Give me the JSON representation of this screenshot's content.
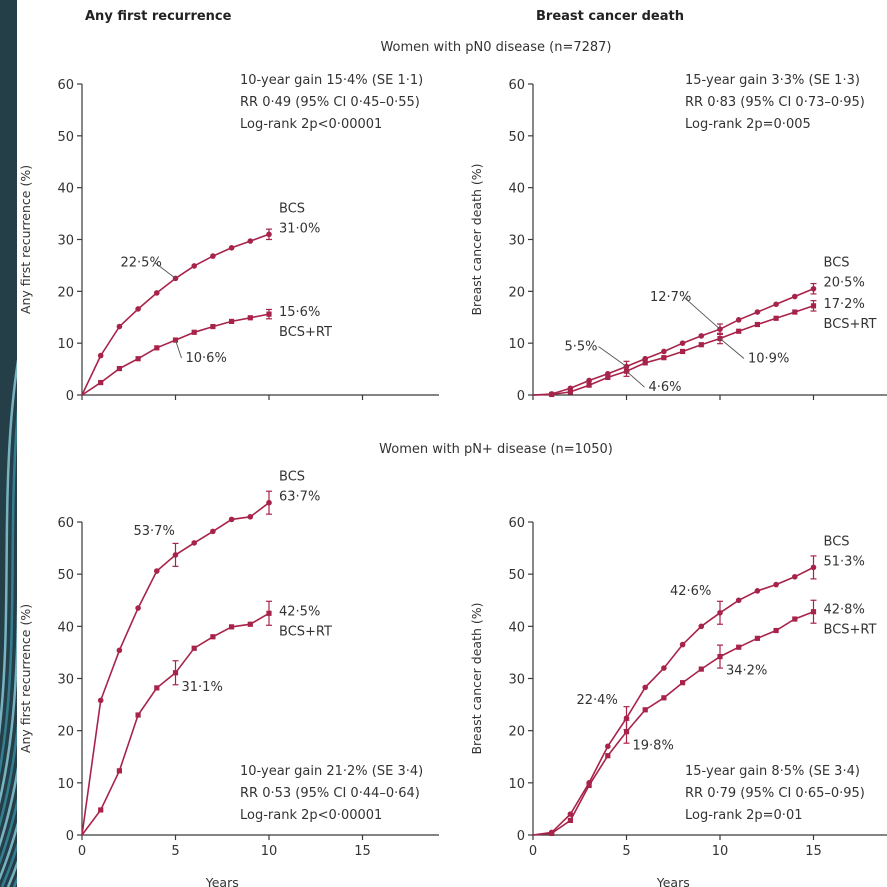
{
  "colors": {
    "series": "#a8234a",
    "backdrop": "#243f48",
    "swirl": "#3a8fa5",
    "axis": "#3a3a3a",
    "text": "#333333"
  },
  "headers": {
    "left": "Any first recurrence",
    "right": "Breast cancer death"
  },
  "subtitles": {
    "top": "Women with pN0 disease (n=7287)",
    "bottom": "Women with pN+ disease (n=1050)"
  },
  "chart_data": [
    {
      "type": "line",
      "panel": "pN0 - any first recurrence",
      "ylabel": "Any first recurrence (%)",
      "xlabel": "",
      "xlim": [
        0,
        19
      ],
      "ylim": [
        0,
        60
      ],
      "xticks": [
        0,
        5,
        10,
        15
      ],
      "yticks": [
        0,
        10,
        20,
        30,
        40,
        50,
        60
      ],
      "stats": [
        "10-year gain 15·4% (SE 1·1)",
        "RR 0·49 (95% CI 0·45–0·55)",
        "Log-rank 2p<0·00001"
      ],
      "stats_anchor": "top",
      "series": [
        {
          "name": "BCS",
          "end_label": "31·0%",
          "x": [
            0,
            1,
            2,
            3,
            4,
            5,
            6,
            7,
            8,
            9,
            10
          ],
          "values": [
            0,
            7.6,
            13.2,
            16.6,
            19.7,
            22.5,
            24.9,
            26.8,
            28.4,
            29.7,
            31.0
          ],
          "err_at": [
            10
          ],
          "err": 1.0
        },
        {
          "name": "BCS+RT",
          "end_label": "15·6%",
          "x": [
            0,
            1,
            2,
            3,
            4,
            5,
            6,
            7,
            8,
            9,
            10
          ],
          "values": [
            0,
            2.4,
            5.1,
            7.0,
            9.1,
            10.6,
            12.1,
            13.2,
            14.2,
            14.9,
            15.6
          ],
          "err_at": [
            10
          ],
          "err": 0.9
        }
      ],
      "annotations": [
        {
          "text": "22·5%",
          "x": 5,
          "y": 22.5,
          "dx": -55,
          "dy": -12,
          "line": true
        },
        {
          "text": "10·6%",
          "x": 5,
          "y": 10.6,
          "dx": 10,
          "dy": 22,
          "line": true
        }
      ]
    },
    {
      "type": "line",
      "panel": "pN0 - breast cancer death",
      "ylabel": "Breast cancer death (%)",
      "xlabel": "",
      "xlim": [
        0,
        19
      ],
      "ylim": [
        0,
        60
      ],
      "xticks": [
        0,
        5,
        10,
        15
      ],
      "yticks": [
        0,
        10,
        20,
        30,
        40,
        50,
        60
      ],
      "stats": [
        "15-year gain 3·3% (SE 1·3)",
        "RR 0·83 (95% CI 0·73–0·95)",
        "Log-rank 2p=0·005"
      ],
      "stats_anchor": "top",
      "series": [
        {
          "name": "BCS",
          "end_label": "20·5%",
          "x": [
            0,
            1,
            2,
            3,
            4,
            5,
            6,
            7,
            8,
            9,
            10,
            11,
            12,
            13,
            14,
            15
          ],
          "values": [
            0,
            0.2,
            1.3,
            2.8,
            4.1,
            5.5,
            7.0,
            8.4,
            10.0,
            11.4,
            12.7,
            14.5,
            16.0,
            17.5,
            19.0,
            20.5
          ],
          "err_at": [
            5,
            10,
            15
          ],
          "err": 1.0
        },
        {
          "name": "BCS+RT",
          "end_label": "17·2%",
          "x": [
            0,
            1,
            2,
            3,
            4,
            5,
            6,
            7,
            8,
            9,
            10,
            11,
            12,
            13,
            14,
            15
          ],
          "values": [
            0,
            0.1,
            0.6,
            1.9,
            3.4,
            4.6,
            6.2,
            7.2,
            8.4,
            9.7,
            10.9,
            12.3,
            13.6,
            14.8,
            16.0,
            17.2
          ],
          "err_at": [
            5,
            10,
            15
          ],
          "err": 1.0
        }
      ],
      "annotations": [
        {
          "text": "12·7%",
          "x": 10,
          "y": 12.7,
          "dx": -70,
          "dy": -28,
          "line": true
        },
        {
          "text": "10·9%",
          "x": 10,
          "y": 10.9,
          "dx": 28,
          "dy": 24,
          "line": true
        },
        {
          "text": "5·5%",
          "x": 5,
          "y": 5.5,
          "dx": -62,
          "dy": -16,
          "line": true
        },
        {
          "text": "4·6%",
          "x": 5,
          "y": 4.6,
          "dx": 22,
          "dy": 20,
          "line": true
        }
      ]
    },
    {
      "type": "line",
      "panel": "pN+ - any first recurrence",
      "ylabel": "Any first recurrence (%)",
      "xlabel": "Years",
      "xlim": [
        0,
        19
      ],
      "ylim": [
        0,
        60
      ],
      "xticks": [
        0,
        5,
        10,
        15
      ],
      "yticks": [
        0,
        10,
        20,
        30,
        40,
        50,
        60
      ],
      "stats": [
        "10-year gain 21·2% (SE 3·4)",
        "RR 0·53 (95% CI 0·44–0·64)",
        "Log-rank 2p<0·00001"
      ],
      "stats_anchor": "bottom",
      "series": [
        {
          "name": "BCS",
          "end_label": "63·7%",
          "x": [
            0,
            1,
            2,
            3,
            4,
            5,
            6,
            7,
            8,
            9,
            10
          ],
          "values": [
            0,
            25.8,
            35.4,
            43.5,
            50.6,
            53.7,
            56.0,
            58.2,
            60.5,
            61.0,
            63.7
          ],
          "err_at": [
            5,
            10
          ],
          "err": 2.2
        },
        {
          "name": "BCS+RT",
          "end_label": "42·5%",
          "x": [
            0,
            1,
            2,
            3,
            4,
            5,
            6,
            7,
            8,
            9,
            10
          ],
          "values": [
            0,
            4.8,
            12.3,
            23.0,
            28.2,
            31.1,
            35.8,
            38.0,
            39.9,
            40.4,
            42.5
          ],
          "err_at": [
            5,
            10
          ],
          "err": 2.3
        }
      ],
      "annotations": [
        {
          "text": "53·7%",
          "x": 5,
          "y": 53.7,
          "dx": -42,
          "dy": -20,
          "line": false
        },
        {
          "text": "31·1%",
          "x": 5,
          "y": 31.1,
          "dx": 6,
          "dy": 18,
          "line": false
        }
      ]
    },
    {
      "type": "line",
      "panel": "pN+ - breast cancer death",
      "ylabel": "Breast cancer death (%)",
      "xlabel": "Years",
      "xlim": [
        0,
        19
      ],
      "ylim": [
        0,
        60
      ],
      "xticks": [
        0,
        5,
        10,
        15
      ],
      "yticks": [
        0,
        10,
        20,
        30,
        40,
        50,
        60
      ],
      "stats": [
        "15-year gain 8·5% (SE 3·4)",
        "RR 0·79 (95% CI 0·65–0·95)",
        "Log-rank 2p=0·01"
      ],
      "stats_anchor": "bottom",
      "series": [
        {
          "name": "BCS",
          "end_label": "51·3%",
          "x": [
            0,
            1,
            2,
            3,
            4,
            5,
            6,
            7,
            8,
            9,
            10,
            11,
            12,
            13,
            14,
            15
          ],
          "values": [
            0,
            0.5,
            4.0,
            10.0,
            17.0,
            22.4,
            28.3,
            32.0,
            36.5,
            40.0,
            42.6,
            45.0,
            46.8,
            48.0,
            49.5,
            51.3
          ],
          "err_at": [
            5,
            10,
            15
          ],
          "err": 2.2
        },
        {
          "name": "BCS+RT",
          "end_label": "42·8%",
          "x": [
            0,
            1,
            2,
            3,
            4,
            5,
            6,
            7,
            8,
            9,
            10,
            11,
            12,
            13,
            14,
            15
          ],
          "values": [
            0,
            0.3,
            2.8,
            9.5,
            15.2,
            19.8,
            24.0,
            26.3,
            29.2,
            31.8,
            34.2,
            36.0,
            37.7,
            39.2,
            41.4,
            42.8
          ],
          "err_at": [
            5,
            10,
            15
          ],
          "err": 2.2
        }
      ],
      "annotations": [
        {
          "text": "42·6%",
          "x": 10,
          "y": 42.6,
          "dx": -50,
          "dy": -18,
          "line": false
        },
        {
          "text": "22·4%",
          "x": 5,
          "y": 22.4,
          "dx": -50,
          "dy": -14,
          "line": false
        },
        {
          "text": "34·2%",
          "x": 10,
          "y": 34.2,
          "dx": 6,
          "dy": 18,
          "line": false
        },
        {
          "text": "19·8%",
          "x": 5,
          "y": 19.8,
          "dx": 6,
          "dy": 18,
          "line": false
        }
      ]
    }
  ]
}
